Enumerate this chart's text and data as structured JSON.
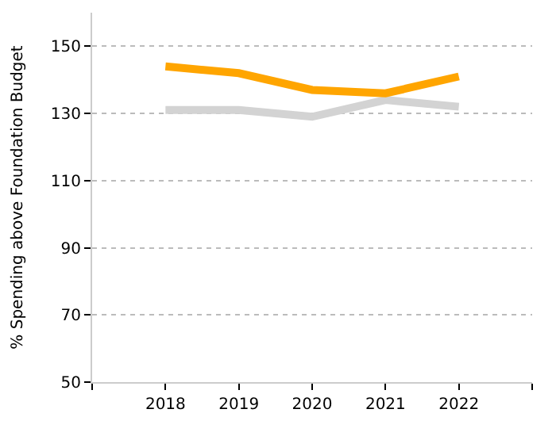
{
  "chart_data": {
    "type": "line",
    "ylabel": "% Spending above Foundation Budget",
    "x": [
      2018,
      2019,
      2020,
      2021,
      2022
    ],
    "series": [
      {
        "color": "#d3d3d3",
        "values": [
          131,
          131,
          129,
          134,
          132
        ]
      },
      {
        "color": "#ffa500",
        "values": [
          144,
          142,
          137,
          136,
          141
        ]
      }
    ],
    "xlim": [
      2017,
      2023
    ],
    "xticks": [
      {
        "value": 2017,
        "label": null
      },
      2018,
      2019,
      2020,
      2021,
      2022,
      {
        "value": 2023,
        "label": null
      }
    ],
    "ylim": [
      50,
      160
    ],
    "yticks": [
      50,
      70,
      90,
      110,
      130,
      150
    ],
    "grid": "y",
    "legend": false,
    "marker": "none",
    "line_style": "solid"
  }
}
